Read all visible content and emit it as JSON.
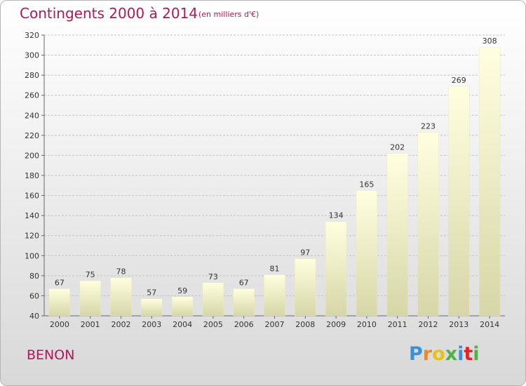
{
  "title": "Contingents 2000 à 2014",
  "subtitle": "(en milliers d'€)",
  "commune": "BENON",
  "logo": {
    "letters": [
      "P",
      "r",
      "o",
      "x",
      "i",
      "t",
      "i"
    ],
    "colors": [
      "#3d8fd6",
      "#f08a1c",
      "#e8c21a",
      "#52b046",
      "#3d8fd6",
      "#e2242a",
      "#52b046"
    ]
  },
  "chart_data": {
    "type": "bar",
    "categories": [
      "2000",
      "2001",
      "2002",
      "2003",
      "2004",
      "2005",
      "2006",
      "2007",
      "2008",
      "2009",
      "2010",
      "2011",
      "2012",
      "2013",
      "2014"
    ],
    "values": [
      67,
      75,
      78,
      57,
      59,
      73,
      67,
      81,
      97,
      134,
      165,
      202,
      223,
      269,
      308
    ],
    "title": "Contingents 2000 à 2014",
    "xlabel": "",
    "ylabel": "",
    "ylim": [
      40,
      320
    ],
    "yticks": [
      40,
      60,
      80,
      100,
      120,
      140,
      160,
      180,
      200,
      220,
      240,
      260,
      280,
      300,
      320
    ],
    "grid": true,
    "bar_color": "#f5f5c8"
  }
}
